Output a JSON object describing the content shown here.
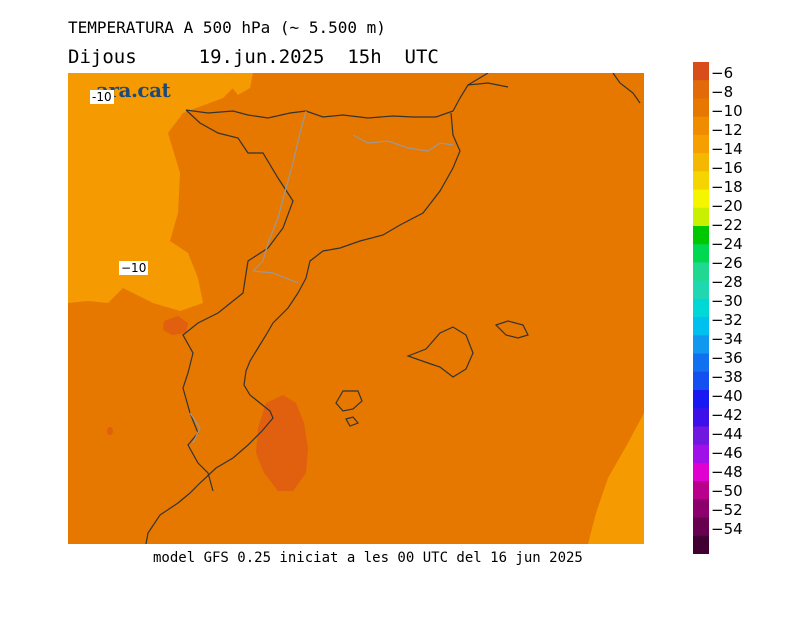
{
  "header": {
    "title": "TEMPERATURA A 500 hPa (~ 5.500 m)",
    "day": "Dijous",
    "datetime": "19.jun.2025  15h  UTC"
  },
  "brand": "ara.cat",
  "footer": "model GFS 0.25 iniciat a les 00 UTC del 16 jun 2025",
  "contour_labels": [
    "-10",
    "−10"
  ],
  "colors": {
    "band_minus8": "#e67800",
    "band_minus6": "#e06010",
    "band_minus12": "#f59a00",
    "coastline": "#333333",
    "border": "#999999"
  },
  "legend": {
    "labels": [
      "−6",
      "−8",
      "−10",
      "−12",
      "−14",
      "−16",
      "−18",
      "−20",
      "−22",
      "−24",
      "−26",
      "−28",
      "−30",
      "−32",
      "−34",
      "−36",
      "−38",
      "−40",
      "−42",
      "−44",
      "−46",
      "−48",
      "−50",
      "−52",
      "−54"
    ],
    "colors": [
      "#d94d1a",
      "#e36a0a",
      "#e67800",
      "#f08c00",
      "#f5a000",
      "#f5b800",
      "#f5d400",
      "#f5f500",
      "#c8f000",
      "#00c800",
      "#00d850",
      "#20d890",
      "#20d8b0",
      "#00d8d8",
      "#00c0f0",
      "#1098f0",
      "#1070f0",
      "#1450f0",
      "#1818f0",
      "#3c10e8",
      "#7018e0",
      "#a010e8",
      "#e000d0",
      "#b8008c",
      "#8c006c",
      "#680050",
      "#400030"
    ]
  }
}
